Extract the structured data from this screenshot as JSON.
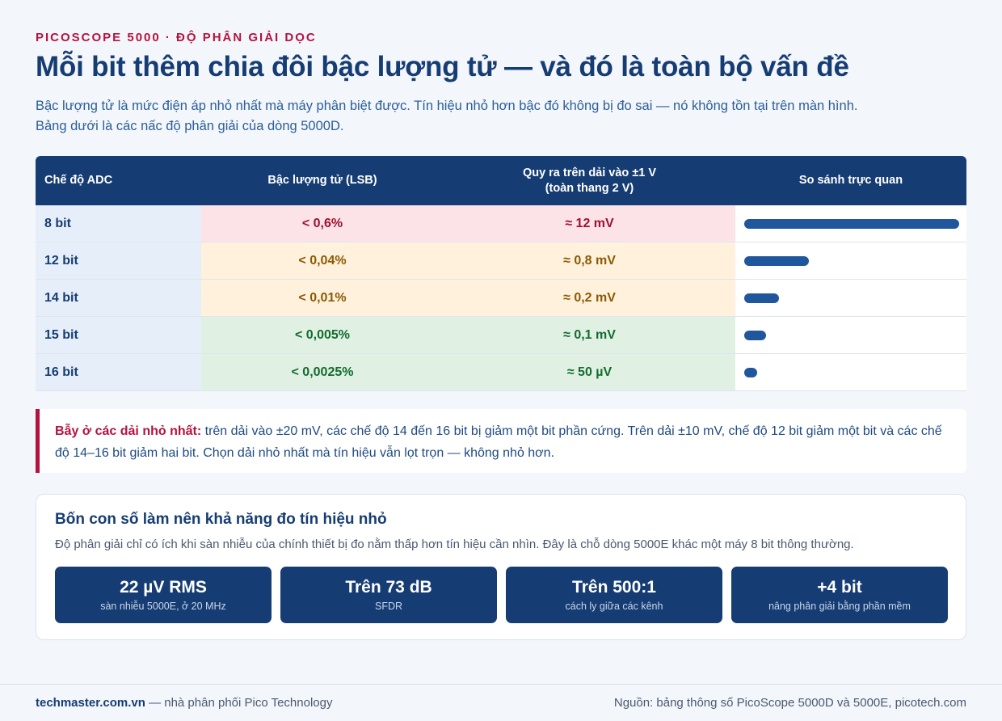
{
  "header": {
    "eyebrow": "PICOSCOPE 5000 · ĐỘ PHÂN GIẢI DỌC",
    "title": "Mỗi bit thêm chia đôi bậc lượng tử — và đó là toàn bộ vấn đề",
    "lede": "Bậc lượng tử là mức điện áp nhỏ nhất mà máy phân biệt được. Tín hiệu nhỏ hơn bậc đó không bị đo sai — nó không tồn tại trên màn hình. Bảng dưới là các nấc độ phân giải của dòng 5000D."
  },
  "table": {
    "columns": [
      "Chế độ ADC",
      "Bậc lượng tử (LSB)",
      "Quy ra trên dải vào ±1 V\n(toàn thang 2 V)",
      "So sánh trực quan"
    ],
    "col3_line1": "Quy ra trên dải vào ±1 V",
    "col3_line2": "(toàn thang 2 V)",
    "rows": [
      {
        "mode": "8 bit",
        "lsb": "< 0,6%",
        "voltage": "≈ 12 mV",
        "tone": "red",
        "relative": 1.0
      },
      {
        "mode": "12 bit",
        "lsb": "< 0,04%",
        "voltage": "≈ 0,8 mV",
        "tone": "amber",
        "relative": 0.3
      },
      {
        "mode": "14 bit",
        "lsb": "< 0,01%",
        "voltage": "≈ 0,2 mV",
        "tone": "amber",
        "relative": 0.16
      },
      {
        "mode": "15 bit",
        "lsb": "< 0,005%",
        "voltage": "≈ 0,1 mV",
        "tone": "green",
        "relative": 0.1
      },
      {
        "mode": "16 bit",
        "lsb": "< 0,0025%",
        "voltage": "≈ 50 µV",
        "tone": "green",
        "relative": 0.06
      }
    ]
  },
  "trap": {
    "label": "Bẫy ở các dải nhỏ nhất:",
    "text": " trên dải vào ±20 mV, các chế độ 14 đến 16 bit bị giảm một bit phần cứng. Trên dải ±10 mV, chế độ 12 bit giảm một bit và các chế độ 14–16 bit giảm hai bit. Chọn dải nhỏ nhất mà tín hiệu vẫn lọt trọn — không nhỏ hơn."
  },
  "panel": {
    "title": "Bốn con số làm nên khả năng đo tín hiệu nhỏ",
    "subtitle": "Độ phân giải chỉ có ích khi sàn nhiễu của chính thiết bị đo nằm thấp hơn tín hiệu cần nhìn. Đây là chỗ dòng 5000E khác một máy 8 bit thông thường.",
    "stats": [
      {
        "value": "22 µV RMS",
        "label": "sàn nhiễu 5000E, ở 20 MHz"
      },
      {
        "value": "Trên 73 dB",
        "label": "SFDR"
      },
      {
        "value": "Trên 500:1",
        "label": "cách ly giữa các kênh"
      },
      {
        "value": "+4 bit",
        "label": "nâng phân giải bằng phần mềm"
      }
    ]
  },
  "footer": {
    "site": "techmaster.com.vn",
    "tagline": " — nhà phân phối Pico Technology",
    "source": "Nguồn: bảng thông số PicoScope 5000D và 5000E, picotech.com"
  },
  "colors": {
    "navy": "#163d73",
    "accent_red": "#b5123e",
    "bar": "#20569b"
  }
}
